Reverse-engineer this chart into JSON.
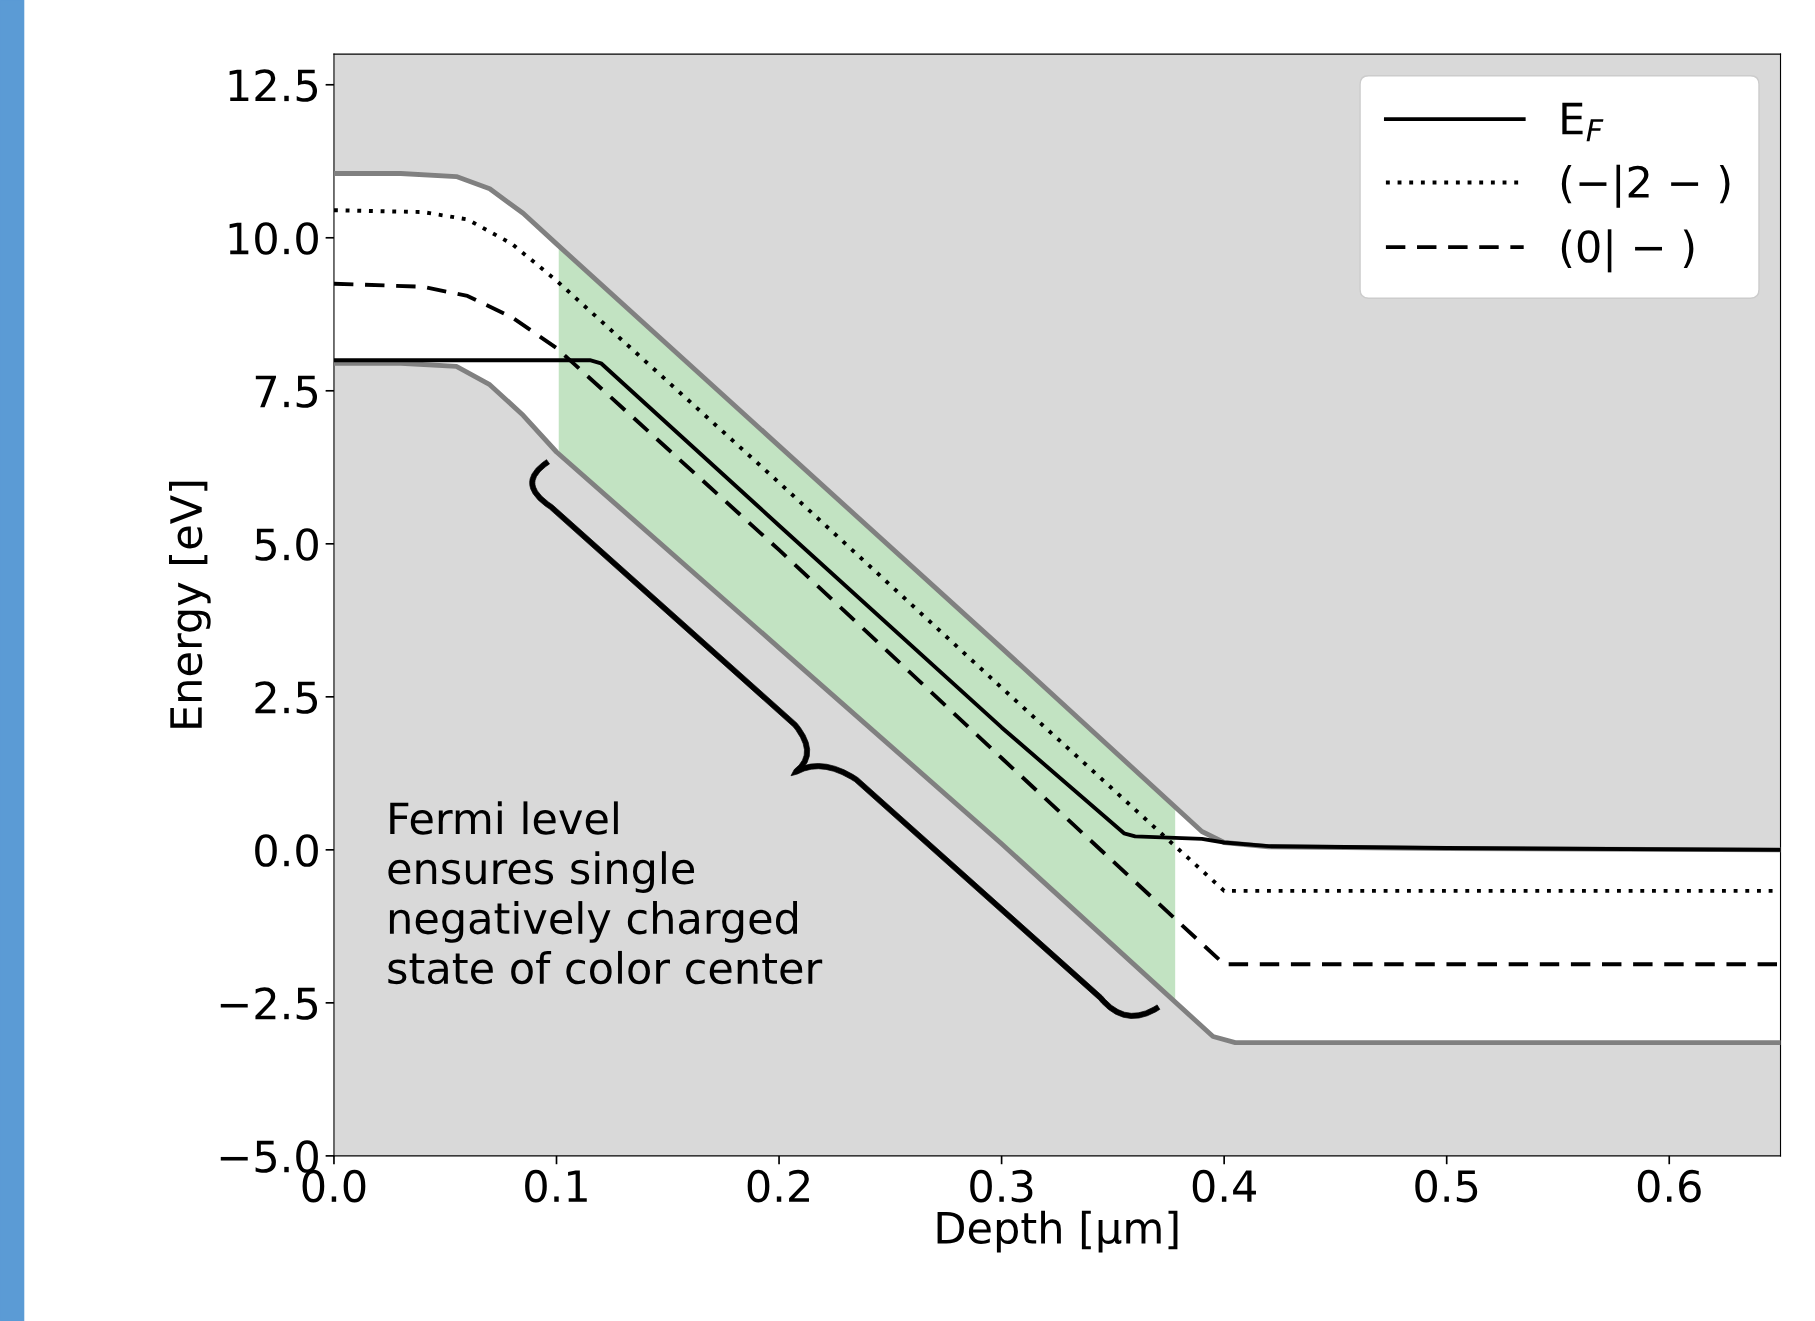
{
  "chart_data": {
    "type": "line",
    "xlabel": "Depth [µm]",
    "ylabel": "Energy [eV]",
    "xlim": [
      0,
      0.65
    ],
    "ylim": [
      -5,
      13
    ],
    "xticks": [
      {
        "value": 0,
        "label": "0.0"
      },
      {
        "value": 0.1,
        "label": "0.1"
      },
      {
        "value": 0.2,
        "label": "0.2"
      },
      {
        "value": 0.3,
        "label": "0.3"
      },
      {
        "value": 0.4,
        "label": "0.4"
      },
      {
        "value": 0.5,
        "label": "0.5"
      },
      {
        "value": 0.6,
        "label": "0.6"
      }
    ],
    "yticks": [
      {
        "value": -5,
        "label": "−5.0"
      },
      {
        "value": -2.5,
        "label": "−2.5"
      },
      {
        "value": 0,
        "label": "0.0"
      },
      {
        "value": 2.5,
        "label": "2.5"
      },
      {
        "value": 5,
        "label": "5.0"
      },
      {
        "value": 7.5,
        "label": "7.5"
      },
      {
        "value": 10,
        "label": "10.0"
      },
      {
        "value": 12.5,
        "label": "12.5"
      }
    ],
    "grid": false,
    "legend": "top right",
    "series": [
      {
        "color": "#808080",
        "line_style": "solid",
        "x": [
          0,
          0.03,
          0.055,
          0.07,
          0.085,
          0.1,
          0.2,
          0.3,
          0.39,
          0.4,
          0.42,
          0.5,
          0.65
        ],
        "values": [
          11.05,
          11.05,
          11.0,
          10.8,
          10.4,
          9.9,
          6.6,
          3.3,
          0.3,
          0.12,
          0.05,
          0.02,
          0.0
        ]
      },
      {
        "color": "#808080",
        "line_style": "solid",
        "x": [
          0,
          0.03,
          0.055,
          0.07,
          0.085,
          0.1,
          0.2,
          0.3,
          0.395,
          0.405,
          0.5,
          0.65
        ],
        "values": [
          7.95,
          7.95,
          7.9,
          7.6,
          7.1,
          6.5,
          3.3,
          0.1,
          -3.05,
          -3.15,
          -3.15,
          -3.15
        ]
      },
      {
        "name": "E$_{F}$",
        "color": "#000000",
        "line_style": "solid",
        "x": [
          0,
          0.115,
          0.12,
          0.2,
          0.3,
          0.355,
          0.36,
          0.39,
          0.4,
          0.42,
          0.5,
          0.65
        ],
        "values": [
          8.0,
          8.0,
          7.95,
          5.3,
          2.0,
          0.27,
          0.22,
          0.18,
          0.12,
          0.06,
          0.03,
          0.0
        ]
      },
      {
        "name": "(−|2 − )",
        "color": "#000000",
        "line_style": "dotted",
        "x": [
          0,
          0.04,
          0.06,
          0.08,
          0.1,
          0.2,
          0.3,
          0.4,
          0.65
        ],
        "values": [
          10.45,
          10.42,
          10.3,
          9.9,
          9.3,
          6.0,
          2.65,
          -0.67,
          -0.67
        ]
      },
      {
        "name": "(0| − )",
        "color": "#000000",
        "line_style": "dashed",
        "x": [
          0,
          0.04,
          0.06,
          0.08,
          0.1,
          0.2,
          0.3,
          0.4,
          0.65
        ],
        "values": [
          9.25,
          9.2,
          9.05,
          8.7,
          8.2,
          4.9,
          1.5,
          -1.87,
          -1.87
        ]
      }
    ],
    "bands": [
      {
        "axis": "x",
        "from": 0.101,
        "to": 0.378,
        "color": "#c2e3c2"
      }
    ],
    "annotations": [
      "Fermi level\nensures single\nnegatively charged\nstate of color center"
    ]
  }
}
